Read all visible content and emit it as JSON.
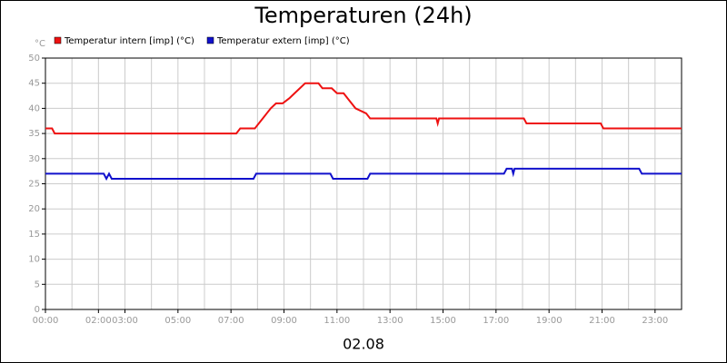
{
  "chart_data": {
    "type": "line",
    "title": "Temperaturen (24h)",
    "y_label": "°C",
    "x_label": "02.08",
    "xlim": [
      0,
      24
    ],
    "ylim": [
      0,
      50
    ],
    "grid": true,
    "yticks": [
      0,
      5,
      10,
      15,
      20,
      25,
      30,
      35,
      40,
      45,
      50
    ],
    "xticks": [
      {
        "value": 0,
        "label": "00:00"
      },
      {
        "value": 2,
        "label": "02:00"
      },
      {
        "value": 3,
        "label": "03:00"
      },
      {
        "value": 5,
        "label": "05:00"
      },
      {
        "value": 7,
        "label": "07:00"
      },
      {
        "value": 9,
        "label": "09:00"
      },
      {
        "value": 11,
        "label": "11:00"
      },
      {
        "value": 13,
        "label": "13:00"
      },
      {
        "value": 15,
        "label": "15:00"
      },
      {
        "value": 17,
        "label": "17:00"
      },
      {
        "value": 19,
        "label": "19:00"
      },
      {
        "value": 21,
        "label": "21:00"
      },
      {
        "value": 23,
        "label": "23:00"
      }
    ],
    "series": [
      {
        "name": "Temperatur intern [imp] (°C)",
        "color": "#ee1111",
        "x": [
          0,
          0.25,
          0.35,
          7.2,
          7.35,
          7.9,
          8.05,
          8.2,
          8.35,
          8.5,
          8.7,
          8.95,
          9.2,
          9.4,
          9.6,
          9.8,
          10.3,
          10.45,
          10.8,
          11.0,
          11.25,
          11.4,
          11.55,
          11.7,
          12.1,
          12.25,
          14.75,
          14.8,
          14.85,
          18.05,
          18.15,
          20.95,
          21.05,
          24
        ],
        "values": [
          36,
          36,
          35,
          35,
          36,
          36,
          37,
          38,
          39,
          40,
          41,
          41,
          42,
          43,
          44,
          45,
          45,
          44,
          44,
          43,
          43,
          42,
          41,
          40,
          39,
          38,
          38,
          37,
          38,
          38,
          37,
          37,
          36,
          36
        ]
      },
      {
        "name": "Temperatur extern [imp] (°C)",
        "color": "#1111cc",
        "x": [
          0,
          2.2,
          2.3,
          2.4,
          2.5,
          7.85,
          7.95,
          10.75,
          10.85,
          12.15,
          12.25,
          17.3,
          17.4,
          17.6,
          17.65,
          17.7,
          22.4,
          22.5,
          24
        ],
        "values": [
          27,
          27,
          26,
          27,
          26,
          26,
          27,
          27,
          26,
          26,
          27,
          27,
          28,
          28,
          27,
          28,
          28,
          27,
          27
        ]
      }
    ]
  }
}
